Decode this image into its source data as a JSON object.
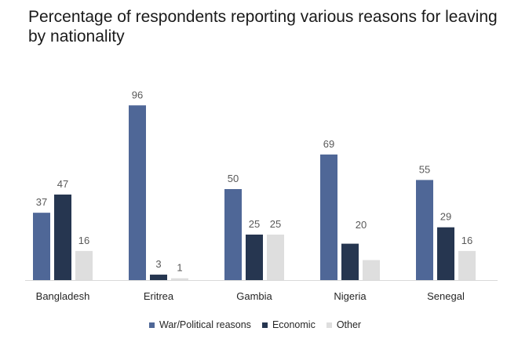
{
  "chart_data": {
    "type": "bar",
    "title": "Percentage of respondents reporting various reasons for leaving by nationality",
    "categories": [
      "Bangladesh",
      "Eritrea",
      "Gambia",
      "Nigeria",
      "Senegal"
    ],
    "series": [
      {
        "name": "War/Political reasons",
        "values": [
          37,
          96,
          50,
          69,
          55
        ],
        "color": "#4f6797",
        "labels": [
          "37",
          "96",
          "50",
          "69",
          "55"
        ]
      },
      {
        "name": "Economic",
        "values": [
          47,
          3,
          25,
          20,
          29
        ],
        "color": "#263650",
        "labels": [
          "47",
          "3",
          "25",
          "",
          "29"
        ]
      },
      {
        "name": "Other",
        "values": [
          16,
          1,
          25,
          11,
          16
        ],
        "color": "#dedede",
        "labels": [
          "16",
          "1",
          "25",
          "",
          "16"
        ]
      }
    ],
    "ylim": [
      0,
      100
    ],
    "grid": false,
    "legend_position": "bottom",
    "extra_labels": [
      {
        "category": "Nigeria",
        "text": "20"
      }
    ]
  }
}
